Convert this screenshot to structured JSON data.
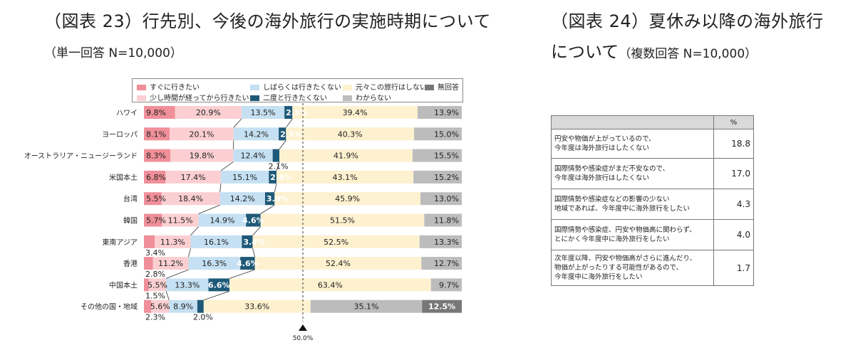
{
  "left_title": "（図表 23）行先別、今後の海外旅行の実施時期について",
  "left_subtitle": "（単一回答 N=10,000）",
  "right_title_line1": "（図表 24）夏休み以降の海外旅行",
  "right_title_line2": "について",
  "right_subtitle": "（複数回答 N=10,000）",
  "colors": {
    "soon": "#f08f99",
    "after_a_while": "#fbcfd2",
    "for_a_while_no": "#c5e0f2",
    "never_again": "#1f5978",
    "never_originally": "#fef1cf",
    "unknown": "#bcbcbc",
    "no_answer": "#777777"
  },
  "chart_data": {
    "type": "bar",
    "orientation": "horizontal",
    "stacked": true,
    "xlim": [
      0,
      100
    ],
    "reference_line": {
      "value": 50.0,
      "label": "50.0%"
    },
    "categories": [
      "ハワイ",
      "ヨーロッパ",
      "オーストラリア・ニュージーランド",
      "米国本土",
      "台湾",
      "韓国",
      "東南アジア",
      "香港",
      "中国本土",
      "その他の国・地域"
    ],
    "series": [
      {
        "name": "すぐに行きたい",
        "color_key": "soon",
        "values": [
          9.8,
          8.1,
          8.3,
          6.8,
          5.5,
          5.7,
          3.4,
          2.8,
          1.5,
          2.3
        ]
      },
      {
        "name": "少し時間が経ってから行きたい",
        "color_key": "after_a_while",
        "values": [
          20.9,
          20.1,
          19.8,
          17.4,
          18.4,
          11.5,
          11.3,
          11.2,
          5.5,
          5.6
        ]
      },
      {
        "name": "しばらくは行きたくない",
        "color_key": "for_a_while_no",
        "values": [
          13.5,
          14.2,
          12.4,
          15.1,
          14.2,
          14.9,
          16.1,
          16.3,
          13.3,
          8.9
        ]
      },
      {
        "name": "二度と行きたくない",
        "color_key": "never_again",
        "values": [
          2.5,
          2.3,
          2.1,
          2.4,
          3.0,
          4.6,
          3.4,
          4.6,
          6.6,
          2.0
        ]
      },
      {
        "name": "元々この旅行はしない",
        "color_key": "never_originally",
        "values": [
          39.4,
          40.3,
          41.9,
          43.1,
          45.9,
          51.5,
          52.5,
          52.4,
          63.4,
          33.6
        ]
      },
      {
        "name": "わからない",
        "color_key": "unknown",
        "values": [
          13.9,
          15.0,
          15.5,
          15.2,
          13.0,
          11.8,
          13.3,
          12.7,
          9.7,
          35.1
        ]
      },
      {
        "name": "無回答",
        "color_key": "no_answer",
        "values": [
          0,
          0,
          0,
          0,
          0,
          0,
          0,
          0,
          0,
          12.5
        ]
      }
    ],
    "labels": [
      [
        "9.8%",
        "20.9%",
        "13.5%",
        "2.5%",
        "39.4%",
        "13.9%",
        ""
      ],
      [
        "8.1%",
        "20.1%",
        "14.2%",
        "2.3%",
        "40.3%",
        "15.0%",
        ""
      ],
      [
        "8.3%",
        "19.8%",
        "12.4%",
        "2.1%",
        "41.9%",
        "15.5%",
        ""
      ],
      [
        "6.8%",
        "17.4%",
        "15.1%",
        "2.4%",
        "43.1%",
        "15.2%",
        ""
      ],
      [
        "5.5%",
        "18.4%",
        "14.2%",
        "3.0%",
        "45.9%",
        "13.0%",
        ""
      ],
      [
        "5.7%",
        "11.5%",
        "14.9%",
        "4.6%",
        "51.5%",
        "11.8%",
        ""
      ],
      [
        "3.4%",
        "11.3%",
        "16.1%",
        "3.4%",
        "52.5%",
        "13.3%",
        ""
      ],
      [
        "2.8%",
        "11.2%",
        "16.3%",
        "4.6%",
        "52.4%",
        "12.7%",
        ""
      ],
      [
        "1.5%",
        "5.5%",
        "13.3%",
        "6.6%",
        "63.4%",
        "9.7%",
        ""
      ],
      [
        "2.3%",
        "5.6%",
        "8.9%",
        "2.0%",
        "33.6%",
        "35.1%",
        "12.5%"
      ]
    ]
  },
  "legend": [
    {
      "label": "すぐに行きたい",
      "color_key": "soon"
    },
    {
      "label": "しばらくは行きたくない",
      "color_key": "for_a_while_no"
    },
    {
      "label": "元々この旅行はしない",
      "color_key": "never_originally"
    },
    {
      "label": "無回答",
      "color_key": "no_answer"
    },
    {
      "label": "少し時間が経ってから行きたい",
      "color_key": "after_a_while"
    },
    {
      "label": "二度と行きたくない",
      "color_key": "never_again"
    },
    {
      "label": "わからない",
      "color_key": "unknown"
    }
  ],
  "table": {
    "header": "%",
    "rows": [
      {
        "text": "円安や物価が上がっているので、\n今年度は海外旅行はしたくない",
        "value": "18.8"
      },
      {
        "text": "国際情勢や感染症がまだ不安なので、\n今年度は海外旅行はしたくない",
        "value": "17.0"
      },
      {
        "text": "国際情勢や感染症などの影響の少ない\n地域であれば、今年度中に海外旅行をしたい",
        "value": "4.3"
      },
      {
        "text": "国際情勢や感染症、円安や物価高に関わらず、\nとにかく今年度中に海外旅行をしたい",
        "value": "4.0"
      },
      {
        "text": "次年度以降、円安や物価高がさらに進んだり、\n物価が上がったりする可能性があるので、\n今年度中に海外旅行をしたい",
        "value": "1.7"
      }
    ]
  }
}
